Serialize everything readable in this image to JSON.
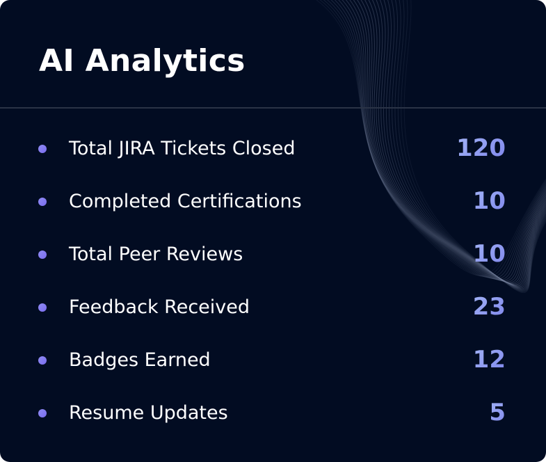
{
  "card": {
    "title": "AI Analytics"
  },
  "stats": [
    {
      "label": "Total JIRA Tickets Closed",
      "value": "120"
    },
    {
      "label": "Completed Certifications",
      "value": "10"
    },
    {
      "label": "Total Peer Reviews",
      "value": "10"
    },
    {
      "label": "Feedback Received",
      "value": "23"
    },
    {
      "label": "Badges Earned",
      "value": "12"
    },
    {
      "label": "Resume Updates",
      "value": "5"
    }
  ],
  "colors": {
    "background": "#020c22",
    "accent": "#8c99ee",
    "bullet": "#7b6df0",
    "divider": "#2a3346"
  },
  "decoration": {
    "background_pattern": "flowing-wave-lines"
  }
}
